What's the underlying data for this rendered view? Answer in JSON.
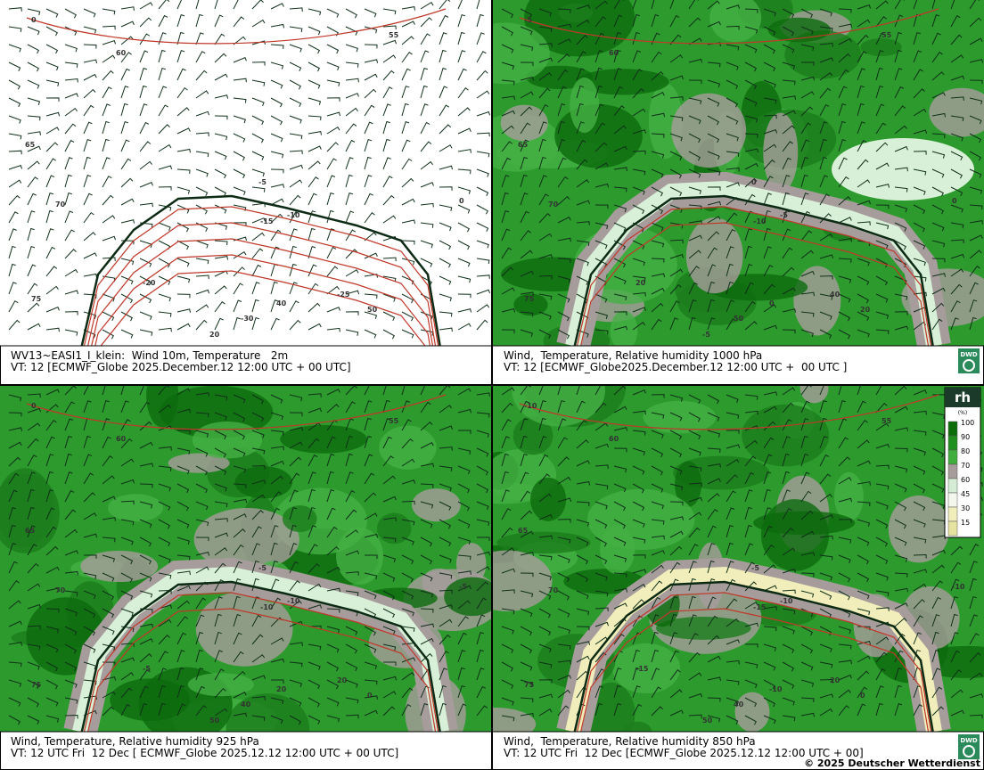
{
  "panels": [
    {
      "caption": "WV13~EASI1_I_klein:  Wind 10m, Temperature   2m",
      "valid_time": "VT: 12 [ECMWF_Globe 2025.December.12 12:00 UTC + 00 UTC]",
      "labels": [
        "0",
        "55",
        "60",
        "65",
        "70",
        "75",
        "-5",
        "-10",
        "-15",
        "-20",
        "-25",
        "-30",
        "20",
        "40",
        "50",
        "0"
      ]
    },
    {
      "caption": "Wind,  Temperature, Relative humidity 1000 hPa",
      "valid_time": "VT: 12 [ECMWF_Globe2025.December.12 12:00 UTC +  00 UTC ]",
      "labels": [
        "-5",
        "55",
        "60",
        "65",
        "70",
        "75",
        "0",
        "-5",
        "-10",
        "20",
        "40",
        "50",
        "-5",
        "0",
        "20",
        "0"
      ]
    },
    {
      "caption": "Wind, Temperature, Relative humidity 925 hPa",
      "valid_time": "VT: 12 UTC Fri  12 Dec [ ECMWF_Globe 2025.12.12 12:00 UTC + 00 UTC]",
      "labels": [
        "0",
        "55",
        "60",
        "65",
        "70",
        "75",
        "-5",
        "-10",
        "-10",
        "-5",
        "20",
        "40",
        "50",
        "20",
        "0",
        "-5"
      ]
    },
    {
      "caption": "Wind,  Temperature, Relative humidity 850 hPa",
      "valid_time": "VT: 12 UTC Fri  12 Dec [ECMWF_Globe 2025.12.12 12:00 UTC + 00]",
      "labels": [
        "-10",
        "55",
        "60",
        "65",
        "70",
        "75",
        "-5",
        "-10",
        "-15",
        "-15",
        "20",
        "40",
        "50",
        "-10",
        "0",
        "-10"
      ]
    }
  ],
  "legend": {
    "title": "rh",
    "unit": "(%)",
    "levels": [
      100,
      90,
      80,
      70,
      60,
      45,
      30,
      15
    ],
    "colors": [
      "#0b6e0b",
      "#1f8f1f",
      "#3fae3f",
      "#a79c9c",
      "#d4ecd4",
      "#f4f8ec",
      "#f2eebb",
      "#e6e3a0"
    ]
  },
  "logo": "DWD",
  "copyright": "© 2025 Deutscher Wetterdienst"
}
